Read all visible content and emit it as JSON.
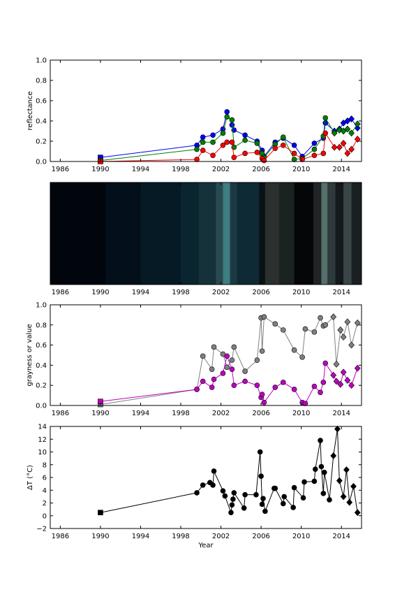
{
  "chart_data": [
    {
      "type": "line",
      "title": "",
      "xlabel": "",
      "ylabel": "reflectance",
      "xlim": [
        1985,
        2016
      ],
      "ylim": [
        0.0,
        1.0
      ],
      "xticks": [
        "1986",
        "1990",
        "1994",
        "1998",
        "2002",
        "2006",
        "2010",
        "2014"
      ],
      "yticks": [
        "0.0",
        "0.2",
        "0.4",
        "0.6",
        "0.8",
        "1.0"
      ],
      "grid": false,
      "legend": "none",
      "series": [
        {
          "color": "#0000ff",
          "x": [
            1990.0,
            1999.6,
            2000.2,
            2001.2,
            2002.2,
            2002.6,
            2003.1,
            2003.3,
            2004.4,
            2005.6,
            2006.1,
            2006.3,
            2007.4,
            2008.2,
            2009.3,
            2010.1,
            2011.3,
            2012.2,
            2012.4,
            2013.3,
            2013.8,
            2014.2,
            2014.6,
            2015.0,
            2015.6
          ],
          "y": [
            0.04,
            0.16,
            0.24,
            0.26,
            0.32,
            0.49,
            0.36,
            0.31,
            0.26,
            0.2,
            0.11,
            0.05,
            0.19,
            0.23,
            0.16,
            0.05,
            0.18,
            0.23,
            0.38,
            0.3,
            0.32,
            0.38,
            0.4,
            0.42,
            0.33
          ]
        },
        {
          "color": "#008000",
          "x": [
            1990.0,
            1999.6,
            2000.2,
            2001.2,
            2002.2,
            2002.6,
            2003.1,
            2003.3,
            2004.4,
            2005.6,
            2006.1,
            2006.3,
            2007.4,
            2008.2,
            2009.3,
            2010.1,
            2011.3,
            2012.2,
            2012.4,
            2013.3,
            2013.8,
            2014.2,
            2014.6,
            2015.0,
            2015.6
          ],
          "y": [
            0.01,
            0.12,
            0.19,
            0.19,
            0.28,
            0.44,
            0.41,
            0.14,
            0.21,
            0.18,
            0.08,
            0.04,
            0.17,
            0.24,
            0.02,
            0.03,
            0.12,
            0.25,
            0.43,
            0.28,
            0.31,
            0.3,
            0.32,
            0.28,
            0.37
          ]
        },
        {
          "color": "#ff0000",
          "x": [
            1990.0,
            1999.6,
            2000.2,
            2001.2,
            2002.2,
            2002.6,
            2003.1,
            2003.3,
            2004.4,
            2005.6,
            2006.1,
            2006.3,
            2007.4,
            2008.2,
            2009.3,
            2010.1,
            2011.3,
            2012.2,
            2012.4,
            2013.3,
            2013.8,
            2014.2,
            2014.6,
            2015.0,
            2015.6
          ],
          "y": [
            0.0,
            0.02,
            0.11,
            0.06,
            0.16,
            0.19,
            0.19,
            0.04,
            0.08,
            0.09,
            0.03,
            0.01,
            0.13,
            0.16,
            0.08,
            0.02,
            0.06,
            0.08,
            0.28,
            0.14,
            0.14,
            0.18,
            0.08,
            0.12,
            0.22
          ]
        }
      ]
    },
    {
      "type": "heatmap",
      "title": "",
      "xlabel": "",
      "ylabel": "",
      "xlim": [
        1985,
        2016
      ],
      "xticks": [
        "1986",
        "1990",
        "1994",
        "1998",
        "2002",
        "2006",
        "2010",
        "2014"
      ],
      "grid": false,
      "bands": [
        {
          "start": 1985.0,
          "end": 1990.5,
          "color": "#01050c"
        },
        {
          "start": 1990.5,
          "end": 1994.0,
          "color": "#03101b"
        },
        {
          "start": 1994.0,
          "end": 1998.0,
          "color": "#061a26"
        },
        {
          "start": 1998.0,
          "end": 1999.8,
          "color": "#0a2530"
        },
        {
          "start": 1999.8,
          "end": 2001.5,
          "color": "#15323b"
        },
        {
          "start": 2001.5,
          "end": 2002.2,
          "color": "#2a4a52"
        },
        {
          "start": 2002.2,
          "end": 2002.9,
          "color": "#3e7d82"
        },
        {
          "start": 2002.9,
          "end": 2003.6,
          "color": "#1d3a44"
        },
        {
          "start": 2003.6,
          "end": 2005.8,
          "color": "#0e2a35"
        },
        {
          "start": 2005.8,
          "end": 2006.4,
          "color": "#0a1216"
        },
        {
          "start": 2006.4,
          "end": 2007.8,
          "color": "#2b2f2e"
        },
        {
          "start": 2007.8,
          "end": 2009.3,
          "color": "#1b2322"
        },
        {
          "start": 2009.3,
          "end": 2011.2,
          "color": "#050607"
        },
        {
          "start": 2011.2,
          "end": 2012.0,
          "color": "#202426"
        },
        {
          "start": 2012.0,
          "end": 2012.6,
          "color": "#55706a"
        },
        {
          "start": 2012.6,
          "end": 2013.4,
          "color": "#2f3a3c"
        },
        {
          "start": 2013.4,
          "end": 2014.2,
          "color": "#15191b"
        },
        {
          "start": 2014.2,
          "end": 2015.0,
          "color": "#3a4548"
        },
        {
          "start": 2015.0,
          "end": 2016.0,
          "color": "#1a2022"
        }
      ]
    },
    {
      "type": "line",
      "title": "",
      "xlabel": "",
      "ylabel": "grayness or value",
      "xlim": [
        1985,
        2016
      ],
      "ylim": [
        0.0,
        1.0
      ],
      "xticks": [
        "1986",
        "1990",
        "1994",
        "1998",
        "2002",
        "2006",
        "2010",
        "2014"
      ],
      "yticks": [
        "0.0",
        "0.2",
        "0.4",
        "0.6",
        "0.8",
        "1.0"
      ],
      "grid": false,
      "legend": "none",
      "series": [
        {
          "color": "#808080",
          "x": [
            1990.0,
            1999.6,
            2000.2,
            2001.1,
            2001.3,
            2002.2,
            2002.6,
            2003.1,
            2003.3,
            2004.4,
            2005.6,
            2006.0,
            2006.1,
            2006.3,
            2007.4,
            2008.2,
            2009.3,
            2010.1,
            2010.4,
            2011.3,
            2011.9,
            2012.2,
            2012.4,
            2013.2,
            2013.5,
            2013.9,
            2014.2,
            2014.6,
            2015.0,
            2015.6
          ],
          "y": [
            0.01,
            0.16,
            0.49,
            0.36,
            0.58,
            0.51,
            0.38,
            0.45,
            0.58,
            0.34,
            0.45,
            0.87,
            0.54,
            0.88,
            0.81,
            0.75,
            0.55,
            0.48,
            0.76,
            0.73,
            0.87,
            0.79,
            0.8,
            0.88,
            0.41,
            0.75,
            0.68,
            0.83,
            0.6,
            0.82
          ]
        },
        {
          "color": "#bf00bf",
          "x": [
            1990.0,
            1999.6,
            2000.2,
            2001.1,
            2001.3,
            2002.2,
            2002.6,
            2003.1,
            2003.3,
            2004.4,
            2005.6,
            2006.0,
            2006.1,
            2006.3,
            2007.4,
            2008.2,
            2009.3,
            2010.1,
            2010.4,
            2011.3,
            2011.9,
            2012.2,
            2012.4,
            2013.2,
            2013.5,
            2013.9,
            2014.2,
            2014.6,
            2015.0,
            2015.6
          ],
          "y": [
            0.04,
            0.16,
            0.24,
            0.18,
            0.26,
            0.32,
            0.49,
            0.36,
            0.2,
            0.24,
            0.2,
            0.08,
            0.11,
            0.03,
            0.18,
            0.23,
            0.16,
            0.03,
            0.02,
            0.19,
            0.13,
            0.23,
            0.42,
            0.3,
            0.24,
            0.21,
            0.33,
            0.25,
            0.2,
            0.37
          ]
        }
      ]
    },
    {
      "type": "line",
      "title": "",
      "xlabel": "Year",
      "ylabel": "ΔT (°C)",
      "xlim": [
        1985,
        2016
      ],
      "ylim": [
        -2,
        14
      ],
      "xticks": [
        "1986",
        "1990",
        "1994",
        "1998",
        "2002",
        "2006",
        "2010",
        "2014"
      ],
      "yticks": [
        "−2",
        "0",
        "2",
        "4",
        "6",
        "8",
        "10",
        "12",
        "14"
      ],
      "grid": false,
      "legend": "none",
      "series": [
        {
          "color": "#000000",
          "x": [
            1990.0,
            1999.6,
            2000.2,
            2000.9,
            2001.2,
            2001.3,
            2002.2,
            2002.4,
            2003.0,
            2003.1,
            2003.2,
            2003.3,
            2004.3,
            2004.4,
            2005.5,
            2005.9,
            2006.0,
            2006.1,
            2006.2,
            2006.4,
            2007.3,
            2007.4,
            2008.2,
            2008.3,
            2009.2,
            2009.3,
            2010.2,
            2010.3,
            2011.3,
            2011.4,
            2011.9,
            2012.0,
            2012.2,
            2012.3,
            2012.8,
            2013.2,
            2013.6,
            2013.8,
            2014.2,
            2014.5,
            2014.8,
            2015.2,
            2015.6
          ],
          "y": [
            0.5,
            3.6,
            4.8,
            5.2,
            4.8,
            7.0,
            3.9,
            3.1,
            0.5,
            1.7,
            2.6,
            3.6,
            1.2,
            3.3,
            3.3,
            10.0,
            6.2,
            1.8,
            2.7,
            0.7,
            4.3,
            4.3,
            1.9,
            3.0,
            1.3,
            4.4,
            2.8,
            5.3,
            5.4,
            7.3,
            11.8,
            7.7,
            3.5,
            6.8,
            2.5,
            9.4,
            13.6,
            5.5,
            3.0,
            7.2,
            2.1,
            4.6,
            0.5
          ]
        }
      ]
    }
  ]
}
